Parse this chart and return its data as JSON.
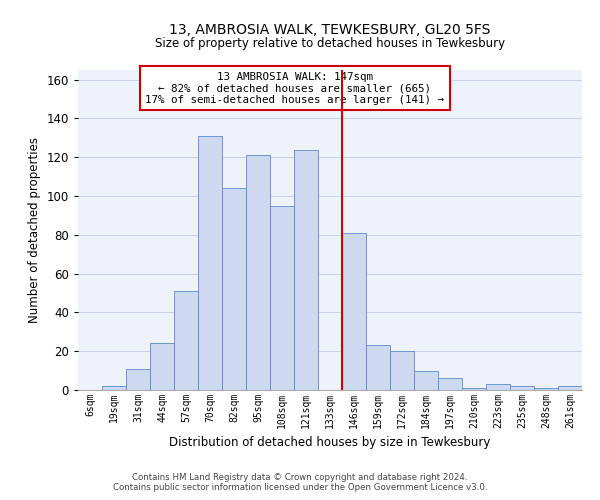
{
  "title_line1": "13, AMBROSIA WALK, TEWKESBURY, GL20 5FS",
  "title_line2": "Size of property relative to detached houses in Tewkesbury",
  "xlabel": "Distribution of detached houses by size in Tewkesbury",
  "ylabel": "Number of detached properties",
  "footer_line1": "Contains HM Land Registry data © Crown copyright and database right 2024.",
  "footer_line2": "Contains public sector information licensed under the Open Government Licence v3.0.",
  "categories": [
    "6sqm",
    "19sqm",
    "31sqm",
    "44sqm",
    "57sqm",
    "70sqm",
    "82sqm",
    "95sqm",
    "108sqm",
    "121sqm",
    "133sqm",
    "146sqm",
    "159sqm",
    "172sqm",
    "184sqm",
    "197sqm",
    "210sqm",
    "223sqm",
    "235sqm",
    "248sqm",
    "261sqm"
  ],
  "values": [
    0,
    2,
    11,
    24,
    51,
    131,
    104,
    121,
    95,
    124,
    0,
    81,
    23,
    20,
    10,
    6,
    1,
    3,
    2,
    1,
    2
  ],
  "bar_color": "#ccd9f0",
  "bar_edge_color": "#5b8bc7",
  "vline_x_index": 11,
  "vline_color": "#cc0000",
  "annotation_text": "13 AMBROSIA WALK: 147sqm\n← 82% of detached houses are smaller (665)\n17% of semi-detached houses are larger (141) →",
  "annotation_box_color": "#cc0000",
  "ylim": [
    0,
    165
  ],
  "yticks": [
    0,
    20,
    40,
    60,
    80,
    100,
    120,
    140,
    160
  ],
  "grid_color": "#c8d0e8",
  "background_color": "#eef2fb"
}
